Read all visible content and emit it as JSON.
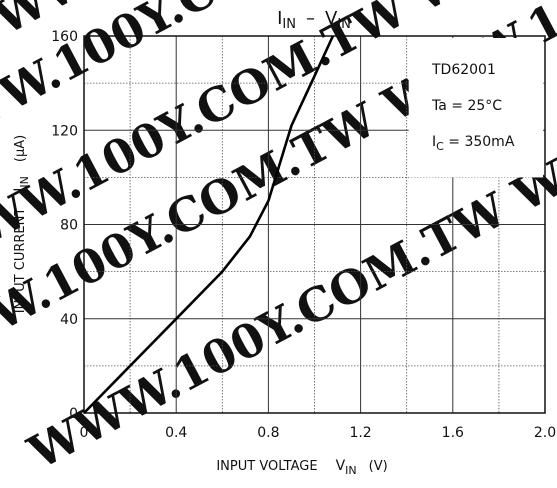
{
  "watermark": {
    "text": "WWW.100Y.COM.TW",
    "color": "#e6e6e6"
  },
  "chart_data": {
    "type": "line",
    "title_parts": {
      "t1": "I",
      "t1_sub": "IN",
      "dash": "–",
      "t2": "V",
      "t2_sub": "IN"
    },
    "xlabel": {
      "main": "INPUT VOLTAGE",
      "sym": "V",
      "sym_sub": "IN",
      "unit": "(V)"
    },
    "ylabel": {
      "main": "INPUT CURRENT",
      "sym": "I",
      "sym_sub": "IN",
      "unit": "(μA)"
    },
    "xlim": [
      0,
      2.0
    ],
    "ylim": [
      0,
      160
    ],
    "x_ticks": [
      0,
      0.4,
      0.8,
      1.2,
      1.6,
      2.0
    ],
    "x_tick_labels": [
      "0",
      "0.4",
      "0.8",
      "1.2",
      "1.6",
      "2.0"
    ],
    "y_ticks": [
      0,
      40,
      80,
      120,
      160
    ],
    "y_tick_labels": [
      "0",
      "40",
      "80",
      "120",
      "160"
    ],
    "x_minor_grid": [
      0.2,
      0.6,
      1.0,
      1.4,
      1.8
    ],
    "y_minor_grid": [
      20,
      60,
      100,
      140
    ],
    "grid": true,
    "annotations": {
      "device": "TD62001",
      "ta": "Ta = 25°C",
      "ic_main": "I",
      "ic_sub": "C",
      "ic_rest": " = 350mA"
    },
    "series": [
      {
        "x": [
          0,
          0.2,
          0.4,
          0.6,
          0.72,
          0.8,
          0.9,
          1.0,
          1.08
        ],
        "y": [
          0,
          20,
          40,
          60,
          75,
          90,
          122,
          143,
          160
        ]
      }
    ],
    "line_color": "#000000"
  }
}
